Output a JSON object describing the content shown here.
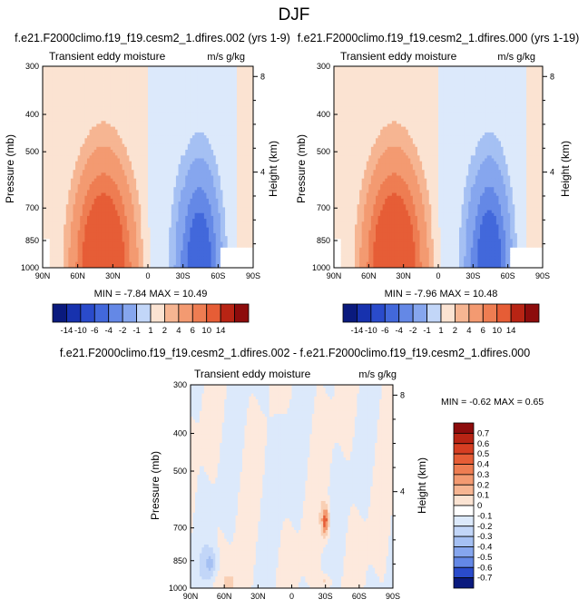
{
  "figure": {
    "title": "DJF"
  },
  "palette": {
    "pos": [
      "#fbe3d2",
      "#f9cfb4",
      "#f6b592",
      "#f39a71",
      "#ee7d52",
      "#e65d36",
      "#d63e22",
      "#b82414",
      "#8d0c0c"
    ],
    "neg": [
      "#dce9fb",
      "#c2d6f8",
      "#a5c0f3",
      "#86a6ee",
      "#6488e6",
      "#4268db",
      "#2a4bcb",
      "#1732ae",
      "#0a1a7e"
    ]
  },
  "chart_data": [
    {
      "type": "contour",
      "title": "f.e21.F2000climo.f19_f19.cesm2_1.dfires.002 (yrs 1-9)",
      "subtitle_left": "Transient eddy moisture",
      "subtitle_right": "m/s g/kg",
      "ylabel": "Pressure (mb)",
      "y2label": "Height (km)",
      "xticks": [
        "90N",
        "60N",
        "30N",
        "0",
        "30S",
        "60S",
        "90S"
      ],
      "yticks": [
        "300",
        "400",
        "500",
        "700",
        "850",
        "1000"
      ],
      "y2ticks": [
        "8",
        "4"
      ],
      "stats": "MIN = -7.84   MAX = 10.49",
      "scale": 1.0,
      "levels": [
        -14,
        -10,
        -6,
        -4,
        -2,
        -1,
        1,
        2,
        4,
        6,
        10,
        14
      ]
    },
    {
      "type": "contour",
      "title": "f.e21.F2000climo.f19_f19.cesm2_1.dfires.000 (yrs 1-19)",
      "subtitle_left": "Transient eddy moisture",
      "subtitle_right": "m/s g/kg",
      "ylabel": "Pressure (mb)",
      "y2label": "Height (km)",
      "xticks": [
        "90N",
        "60N",
        "30N",
        "0",
        "30S",
        "60S",
        "90S"
      ],
      "yticks": [
        "300",
        "400",
        "500",
        "700",
        "850",
        "1000"
      ],
      "y2ticks": [
        "8",
        "4"
      ],
      "stats": "MIN = -7.96   MAX = 10.48",
      "scale": 1.0,
      "levels": [
        -14,
        -10,
        -6,
        -4,
        -2,
        -1,
        1,
        2,
        4,
        6,
        10,
        14
      ]
    },
    {
      "type": "contour",
      "title": "f.e21.F2000climo.f19_f19.cesm2_1.dfires.002 - f.e21.F2000climo.f19_f19.cesm2_1.dfires.000",
      "subtitle_left": "Transient eddy moisture",
      "subtitle_right": "m/s g/kg",
      "ylabel": "Pressure (mb)",
      "y2label": "Height (km)",
      "xticks": [
        "90N",
        "60N",
        "30N",
        "0",
        "30S",
        "60S",
        "90S"
      ],
      "yticks": [
        "300",
        "400",
        "500",
        "700",
        "850",
        "1000"
      ],
      "y2ticks": [
        "8",
        "4"
      ],
      "stats": "MIN = -0.62  MAX =  0.65",
      "levels": [
        -0.7,
        -0.6,
        -0.5,
        -0.4,
        -0.3,
        -0.2,
        -0.1,
        0,
        0.1,
        0.2,
        0.3,
        0.4,
        0.5,
        0.6,
        0.7
      ],
      "labelbar_labels": [
        "0.7",
        "0.6",
        "0.5",
        "0.4",
        "0.3",
        "0.2",
        "0.1",
        "0",
        "-0.1",
        "-0.2",
        "-0.3",
        "-0.4",
        "-0.5",
        "-0.6",
        "-0.7"
      ]
    }
  ],
  "labelbar_top": {
    "labels": [
      "-14",
      "-10",
      "-6",
      "-4",
      "-2",
      "-1",
      "1",
      "2",
      "4",
      "6",
      "10",
      "14"
    ]
  }
}
